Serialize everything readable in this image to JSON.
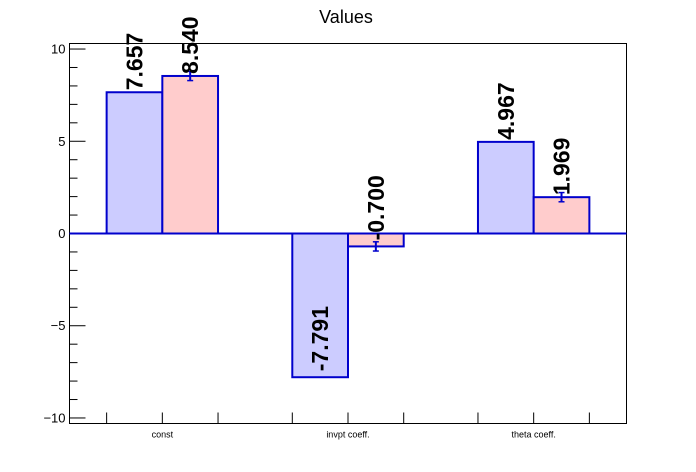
{
  "chart_data": {
    "type": "bar",
    "title": "Values",
    "xlabel": "",
    "ylabel": "",
    "categories": [
      "const",
      "invpt coeff.",
      "theta coeff."
    ],
    "series": [
      {
        "values": [
          7.657,
          -7.791,
          4.967
        ],
        "value_labels": [
          "7.657",
          "-7.791",
          "4.967"
        ],
        "fill": "#ccccff",
        "stroke": "#0000cc"
      },
      {
        "values": [
          8.54,
          -0.7,
          1.969
        ],
        "value_labels": [
          "8.540",
          "-0.700",
          "1.969"
        ],
        "errors": [
          0.25,
          0.25,
          0.25
        ],
        "fill": "#ffcccc",
        "stroke": "#0000cc"
      }
    ],
    "ylim": [
      -10.3,
      10.3
    ],
    "yticks": [
      -10,
      -5,
      0,
      5,
      10
    ],
    "ytick_labels": [
      "−10",
      "−5",
      "0",
      "5",
      "10"
    ],
    "grid": false,
    "legend": "none"
  }
}
